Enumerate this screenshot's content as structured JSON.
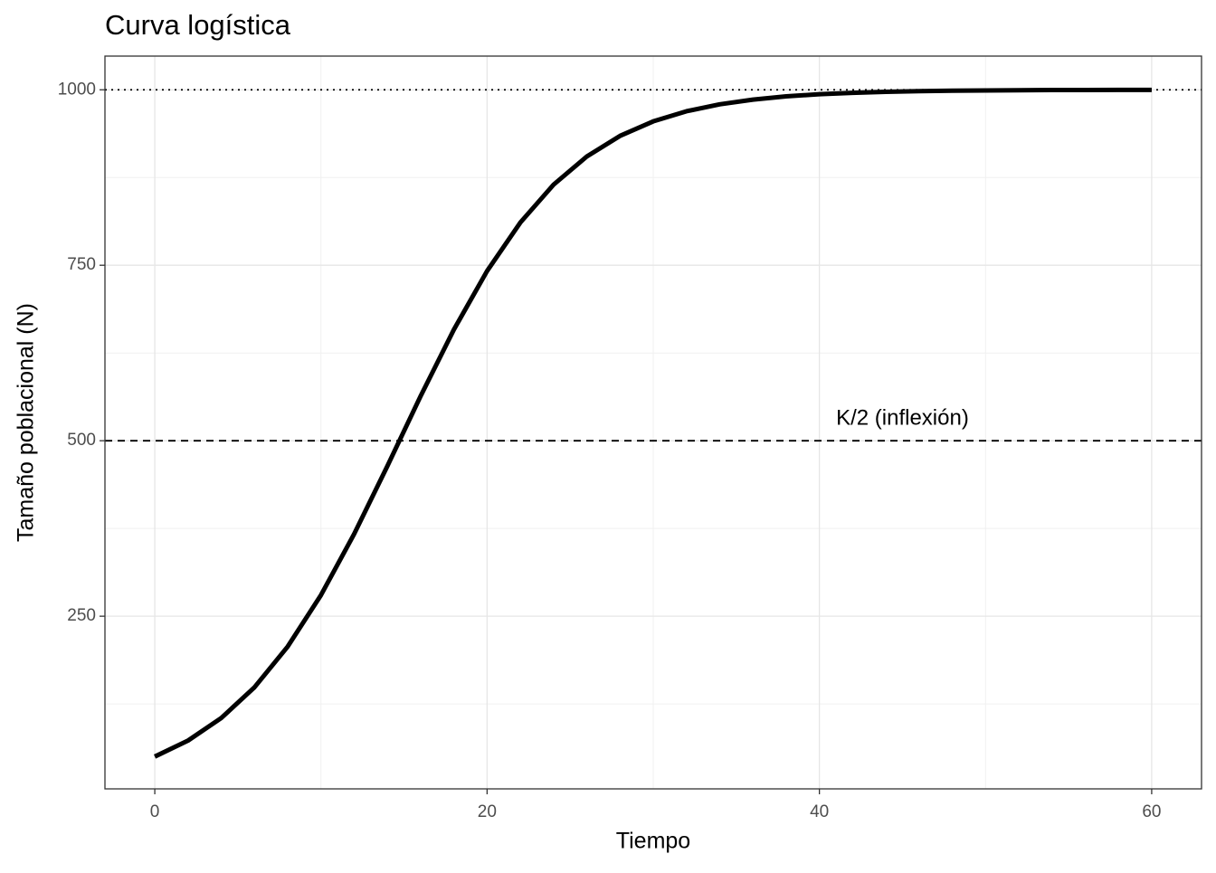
{
  "chart_data": {
    "type": "line",
    "title": "Curva logística",
    "x_label": "Tiempo",
    "y_label": "Tamaño poblacional (N)",
    "x": [
      0,
      2,
      4,
      6,
      8,
      10,
      12,
      14,
      16,
      18,
      20,
      22,
      24,
      26,
      28,
      30,
      32,
      34,
      36,
      38,
      40,
      42,
      44,
      46,
      48,
      50,
      52,
      54,
      56,
      58,
      60
    ],
    "series": [
      {
        "color": "#000000",
        "values": [
          50,
          72.8,
          104.9,
          148.7,
          206.8,
          280.0,
          367.2,
          464.0,
          563.6,
          658.3,
          741.8,
          810.8,
          864.8,
          904.9,
          934.3,
          955.0,
          969.4,
          979.3,
          986.0,
          990.6,
          993.7,
          995.7,
          997.1,
          998.1,
          998.7,
          999.1,
          999.4,
          999.6,
          999.7,
          999.8,
          999.9
        ]
      }
    ],
    "xlim": [
      -3,
      63
    ],
    "ylim": [
      4,
      1048
    ],
    "xticks": [
      0,
      20,
      40,
      60
    ],
    "yticks": [
      250,
      500,
      750,
      1000
    ],
    "x_minor_ticks": [
      10,
      30,
      50
    ],
    "y_minor_ticks": [
      125,
      375,
      625,
      875
    ],
    "grid": true,
    "hlines": [
      {
        "value": 1000,
        "style": "dotted"
      },
      {
        "value": 500,
        "style": "dashed"
      }
    ],
    "annotations": [
      {
        "text": "K/2 (inflexión)",
        "x": 45,
        "y": 531
      }
    ]
  }
}
